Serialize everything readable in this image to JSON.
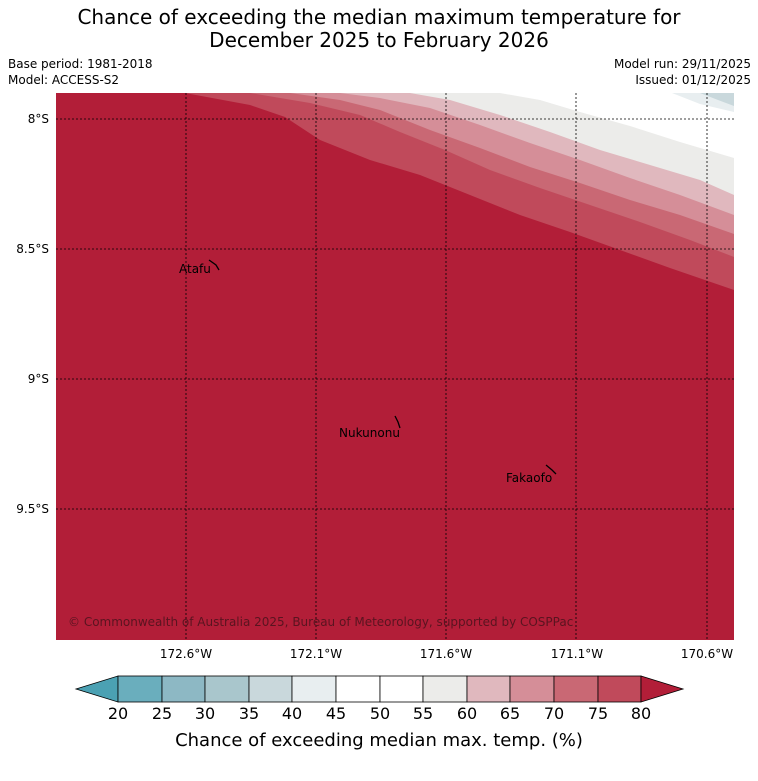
{
  "header": {
    "title_line1": "Chance of exceeding the median maximum temperature for",
    "title_line2": "December 2025 to February 2026",
    "base_period": "Base period: 1981-2018",
    "model": "Model: ACCESS-S2",
    "model_run": "Model run: 29/11/2025",
    "issued": "Issued: 01/12/2025"
  },
  "map": {
    "lat_labels": [
      "8°S",
      "8.5°S",
      "9°S",
      "9.5°S"
    ],
    "lon_labels": [
      "172.6°W",
      "172.1°W",
      "171.6°W",
      "171.1°W",
      "170.6°W"
    ],
    "places": [
      {
        "name": "Atafu",
        "lon": -172.52,
        "lat": -8.58
      },
      {
        "name": "Nukunonu",
        "lon": -171.83,
        "lat": -9.19
      },
      {
        "name": "Fakaofo",
        "lon": -171.22,
        "lat": -9.37
      }
    ],
    "copyright": "© Commonwealth of Australia 2025, Bureau of Meteorology, supported by COSPPac",
    "grid": true
  },
  "colorbar": {
    "label": "Chance of exceeding median max. temp. (%)",
    "ticks": [
      "20",
      "25",
      "30",
      "35",
      "40",
      "45",
      "50",
      "55",
      "60",
      "65",
      "70",
      "75",
      "80"
    ],
    "colors": {
      "below_20": "#4ba1b3",
      "20_25": "#6aaebd",
      "25_30": "#8db8c4",
      "30_35": "#a9c6cc",
      "35_40": "#c9d8dc",
      "40_45": "#e8eef0",
      "45_50": "#ffffff",
      "50_55": "#ffffff",
      "55_60": "#ececea",
      "60_65": "#e0b8be",
      "65_70": "#d58e98",
      "70_75": "#c96874",
      "75_80": "#c04a5b",
      "above_80": "#b21e38"
    }
  }
}
